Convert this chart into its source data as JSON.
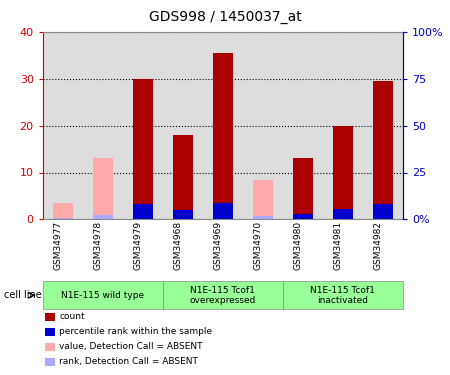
{
  "title": "GDS998 / 1450037_at",
  "samples": [
    "GSM34977",
    "GSM34978",
    "GSM34979",
    "GSM34968",
    "GSM34969",
    "GSM34970",
    "GSM34980",
    "GSM34981",
    "GSM34982"
  ],
  "count_values": [
    0,
    0,
    30,
    18,
    35.5,
    0,
    13,
    20,
    29.5
  ],
  "percentile_values": [
    0,
    0,
    8,
    5,
    9,
    0,
    3,
    5.5,
    8
  ],
  "absent_value_values": [
    3.5,
    13,
    0,
    0,
    0,
    8.5,
    0,
    0,
    0
  ],
  "absent_rank_values": [
    1,
    2.5,
    0,
    0,
    0,
    2,
    0,
    0,
    0
  ],
  "group_names": [
    "N1E-115 wild type",
    "N1E-115 Tcof1\noverexpressed",
    "N1E-115 Tcof1\ninactivated"
  ],
  "group_ranges": [
    [
      0,
      3
    ],
    [
      3,
      6
    ],
    [
      6,
      9
    ]
  ],
  "ylim_left": [
    0,
    40
  ],
  "ylim_right": [
    0,
    100
  ],
  "yticks_left": [
    0,
    10,
    20,
    30,
    40
  ],
  "ytick_labels_left": [
    "0",
    "10",
    "20",
    "30",
    "40"
  ],
  "yticks_right": [
    0,
    25,
    50,
    75,
    100
  ],
  "ytick_labels_right": [
    "0%",
    "25",
    "50",
    "75",
    "100%"
  ],
  "color_count": "#aa0000",
  "color_percentile": "#0000cc",
  "color_absent_value": "#ffaaaa",
  "color_absent_rank": "#aaaaff",
  "legend_items": [
    {
      "label": "count",
      "color": "#aa0000"
    },
    {
      "label": "percentile rank within the sample",
      "color": "#0000cc"
    },
    {
      "label": "value, Detection Call = ABSENT",
      "color": "#ffaaaa"
    },
    {
      "label": "rank, Detection Call = ABSENT",
      "color": "#aaaaff"
    }
  ],
  "cell_line_label": "cell line",
  "background_color": "#ffffff",
  "plot_bg_color": "#dddddd",
  "tick_label_color_left": "#cc0000",
  "tick_label_color_right": "#0000cc",
  "grid_color": "#000000",
  "cell_line_bg": "#99ff99"
}
